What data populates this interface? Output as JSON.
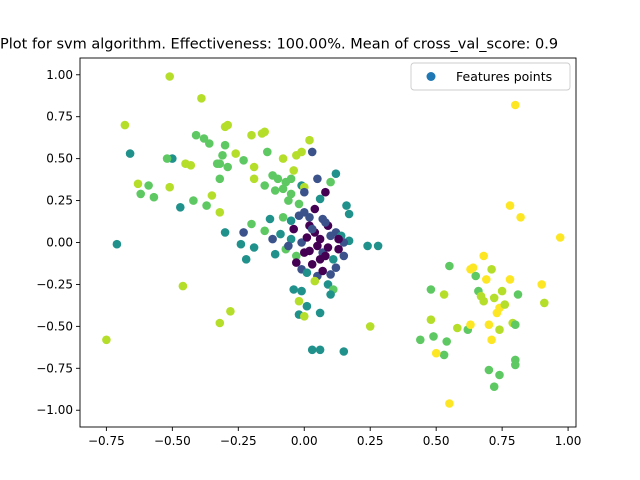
{
  "chart_data": {
    "type": "scatter",
    "title": "Plot for svm algorithm. Effectiveness: 100.00%. Mean of cross_val_score: 0.9",
    "xlabel": "",
    "ylabel": "",
    "xlim": [
      -0.85,
      1.03
    ],
    "ylim": [
      -1.1,
      1.1
    ],
    "xticks": [
      -0.75,
      -0.5,
      -0.25,
      0.0,
      0.25,
      0.5,
      0.75,
      1.0
    ],
    "xtick_labels": [
      "−0.75",
      "−0.50",
      "−0.25",
      "0.00",
      "0.25",
      "0.50",
      "0.75",
      "1.00"
    ],
    "yticks": [
      -1.0,
      -0.75,
      -0.5,
      -0.25,
      0.0,
      0.25,
      0.5,
      0.75,
      1.0
    ],
    "ytick_labels": [
      "−1.00",
      "−0.75",
      "−0.50",
      "−0.25",
      "0.00",
      "0.25",
      "0.50",
      "0.75",
      "1.00"
    ],
    "grid": false,
    "legend": {
      "position": "top-right",
      "entries": [
        "Features points"
      ],
      "marker_color": "#1f77b4"
    },
    "colors": [
      "#440154",
      "#3b528b",
      "#21918c",
      "#5ec962",
      "#b5de2b",
      "#fde725"
    ],
    "points": [
      [
        -0.51,
        0.99,
        4
      ],
      [
        -0.39,
        0.86,
        4
      ],
      [
        -0.68,
        0.7,
        4
      ],
      [
        -0.29,
        0.7,
        4
      ],
      [
        -0.3,
        0.69,
        4
      ],
      [
        -0.41,
        0.64,
        3
      ],
      [
        -0.38,
        0.62,
        3
      ],
      [
        -0.3,
        0.58,
        3
      ],
      [
        -0.2,
        0.64,
        4
      ],
      [
        -0.16,
        0.65,
        4
      ],
      [
        -0.15,
        0.66,
        4
      ],
      [
        -0.66,
        0.53,
        2
      ],
      [
        -0.5,
        0.5,
        2
      ],
      [
        -0.31,
        0.52,
        3
      ],
      [
        -0.32,
        0.47,
        3
      ],
      [
        -0.36,
        0.59,
        3
      ],
      [
        -0.26,
        0.53,
        4
      ],
      [
        -0.23,
        0.49,
        3
      ],
      [
        -0.29,
        0.45,
        3
      ],
      [
        -0.43,
        0.46,
        4
      ],
      [
        -0.14,
        0.54,
        3
      ],
      [
        -0.08,
        0.5,
        4
      ],
      [
        -0.03,
        0.52,
        4
      ],
      [
        -0.01,
        0.54,
        4
      ],
      [
        0.03,
        0.54,
        1
      ],
      [
        0.02,
        0.61,
        4
      ],
      [
        -0.19,
        0.45,
        4
      ],
      [
        -0.63,
        0.35,
        4
      ],
      [
        -0.59,
        0.34,
        3
      ],
      [
        -0.51,
        0.33,
        4
      ],
      [
        -0.32,
        0.38,
        3
      ],
      [
        -0.19,
        0.38,
        4
      ],
      [
        -0.15,
        0.34,
        3
      ],
      [
        -0.12,
        0.4,
        3
      ],
      [
        -0.1,
        0.38,
        3
      ],
      [
        -0.07,
        0.36,
        3
      ],
      [
        -0.05,
        0.38,
        3
      ],
      [
        -0.04,
        0.43,
        4
      ],
      [
        -0.01,
        0.34,
        2
      ],
      [
        0.0,
        0.33,
        4
      ],
      [
        0.05,
        0.38,
        1
      ],
      [
        0.12,
        0.41,
        2
      ],
      [
        0.1,
        0.36,
        3
      ],
      [
        -0.62,
        0.29,
        3
      ],
      [
        -0.57,
        0.27,
        3
      ],
      [
        -0.42,
        0.25,
        3
      ],
      [
        -0.37,
        0.22,
        3
      ],
      [
        -0.35,
        0.28,
        4
      ],
      [
        -0.32,
        0.18,
        4
      ],
      [
        -0.47,
        0.21,
        2
      ],
      [
        -0.11,
        0.31,
        3
      ],
      [
        -0.08,
        0.32,
        3
      ],
      [
        -0.05,
        0.29,
        3
      ],
      [
        -0.02,
        0.23,
        3
      ],
      [
        0.0,
        0.3,
        1
      ],
      [
        0.06,
        0.26,
        2
      ],
      [
        0.08,
        0.3,
        0
      ],
      [
        0.16,
        0.22,
        2
      ],
      [
        0.17,
        0.17,
        2
      ],
      [
        -0.3,
        0.06,
        2
      ],
      [
        -0.2,
        0.11,
        3
      ],
      [
        -0.15,
        0.07,
        3
      ],
      [
        -0.08,
        0.15,
        3
      ],
      [
        -0.05,
        0.13,
        2
      ],
      [
        -0.02,
        0.16,
        1
      ],
      [
        0.0,
        0.18,
        1
      ],
      [
        0.02,
        0.15,
        1
      ],
      [
        0.04,
        0.2,
        0
      ],
      [
        0.07,
        0.14,
        1
      ],
      [
        0.09,
        0.1,
        0
      ],
      [
        0.12,
        0.06,
        1
      ],
      [
        0.14,
        0.04,
        2
      ],
      [
        0.17,
        0.01,
        2
      ],
      [
        -0.71,
        -0.01,
        2
      ],
      [
        -0.23,
        0.06,
        1
      ],
      [
        -0.24,
        -0.01,
        2
      ],
      [
        -0.19,
        -0.03,
        2
      ],
      [
        -0.22,
        -0.1,
        2
      ],
      [
        -0.11,
        -0.07,
        2
      ],
      [
        -0.07,
        -0.04,
        3
      ],
      [
        -0.05,
        0.02,
        2
      ],
      [
        -0.03,
        -0.08,
        3
      ],
      [
        -0.01,
        0.0,
        1
      ],
      [
        0.01,
        0.03,
        0
      ],
      [
        0.02,
        -0.05,
        0
      ],
      [
        0.04,
        0.06,
        0
      ],
      [
        0.05,
        -0.02,
        0
      ],
      [
        0.06,
        0.02,
        0
      ],
      [
        0.07,
        -0.06,
        1
      ],
      [
        0.09,
        -0.03,
        0
      ],
      [
        0.1,
        0.04,
        1
      ],
      [
        0.11,
        -0.1,
        2
      ],
      [
        0.13,
        -0.04,
        0
      ],
      [
        0.15,
        0.0,
        1
      ],
      [
        0.24,
        -0.02,
        2
      ],
      [
        -0.03,
        -0.12,
        0
      ],
      [
        -0.01,
        -0.16,
        1
      ],
      [
        0.01,
        -0.18,
        2
      ],
      [
        0.03,
        -0.13,
        0
      ],
      [
        0.05,
        -0.2,
        1
      ],
      [
        0.07,
        -0.17,
        0
      ],
      [
        0.09,
        -0.25,
        2
      ],
      [
        0.11,
        -0.28,
        3
      ],
      [
        0.04,
        -0.23,
        4
      ],
      [
        -0.04,
        -0.28,
        2
      ],
      [
        -0.01,
        -0.29,
        2
      ],
      [
        -0.02,
        -0.35,
        4
      ],
      [
        0.01,
        -0.38,
        2
      ],
      [
        0.06,
        -0.42,
        2
      ],
      [
        -0.02,
        -0.43,
        2
      ],
      [
        0.0,
        -0.44,
        4
      ],
      [
        0.03,
        -0.64,
        2
      ],
      [
        0.06,
        -0.64,
        2
      ],
      [
        0.15,
        -0.65,
        2
      ],
      [
        0.1,
        -0.31,
        2
      ],
      [
        -0.46,
        -0.26,
        4
      ],
      [
        -0.28,
        -0.41,
        4
      ],
      [
        -0.32,
        -0.48,
        4
      ],
      [
        0.25,
        -0.5,
        4
      ],
      [
        -0.75,
        -0.58,
        4
      ],
      [
        0.44,
        -0.58,
        3
      ],
      [
        0.49,
        -0.56,
        3
      ],
      [
        0.48,
        -0.46,
        4
      ],
      [
        0.48,
        -0.28,
        3
      ],
      [
        0.53,
        -0.31,
        4
      ],
      [
        0.53,
        -0.67,
        3
      ],
      [
        0.54,
        -0.59,
        3
      ],
      [
        0.55,
        -0.14,
        3
      ],
      [
        0.55,
        -0.96,
        5
      ],
      [
        0.58,
        -0.51,
        4
      ],
      [
        0.62,
        -0.52,
        3
      ],
      [
        0.63,
        -0.49,
        5
      ],
      [
        0.63,
        -0.16,
        5
      ],
      [
        0.64,
        -0.15,
        5
      ],
      [
        0.65,
        -0.2,
        3
      ],
      [
        0.66,
        -0.29,
        3
      ],
      [
        0.67,
        -0.32,
        4
      ],
      [
        0.68,
        -0.35,
        4
      ],
      [
        0.68,
        -0.08,
        5
      ],
      [
        0.69,
        -0.22,
        5
      ],
      [
        0.7,
        -0.49,
        5
      ],
      [
        0.7,
        -0.76,
        3
      ],
      [
        0.71,
        -0.16,
        4
      ],
      [
        0.71,
        -0.58,
        5
      ],
      [
        0.72,
        -0.33,
        4
      ],
      [
        0.72,
        -0.86,
        3
      ],
      [
        0.73,
        -0.42,
        5
      ],
      [
        0.74,
        -0.39,
        5
      ],
      [
        0.74,
        -0.52,
        4
      ],
      [
        0.74,
        -0.79,
        3
      ],
      [
        0.75,
        -0.29,
        4
      ],
      [
        0.76,
        -0.37,
        4
      ],
      [
        0.78,
        -0.22,
        5
      ],
      [
        0.79,
        -0.48,
        4
      ],
      [
        0.8,
        -0.49,
        3
      ],
      [
        0.8,
        -0.7,
        3
      ],
      [
        0.8,
        -0.73,
        3
      ],
      [
        0.81,
        -0.31,
        3
      ],
      [
        0.78,
        0.22,
        5
      ],
      [
        0.8,
        0.82,
        5
      ],
      [
        0.82,
        0.15,
        5
      ],
      [
        0.9,
        -0.25,
        5
      ],
      [
        0.91,
        -0.36,
        4
      ],
      [
        0.97,
        0.03,
        5
      ],
      [
        0.5,
        -0.66,
        5
      ],
      [
        0.28,
        -0.02,
        2
      ],
      [
        -0.33,
        0.47,
        3
      ],
      [
        -0.45,
        0.47,
        4
      ],
      [
        -0.52,
        0.5,
        3
      ],
      [
        -0.06,
        0.25,
        3
      ],
      [
        -0.13,
        0.14,
        2
      ],
      [
        -0.09,
        0.05,
        2
      ],
      [
        0.02,
        0.1,
        0
      ],
      [
        0.08,
        0.12,
        1
      ],
      [
        0.12,
        -0.15,
        1
      ],
      [
        0.0,
        -0.06,
        0
      ],
      [
        0.06,
        -0.1,
        0
      ],
      [
        -0.06,
        -0.02,
        1
      ],
      [
        0.13,
        0.02,
        0
      ],
      [
        0.1,
        -0.19,
        1
      ],
      [
        -0.12,
        0.02,
        1
      ],
      [
        0.03,
        0.08,
        1
      ],
      [
        0.08,
        -0.08,
        0
      ],
      [
        -0.04,
        0.08,
        0
      ],
      [
        0.15,
        -0.08,
        1
      ]
    ]
  }
}
